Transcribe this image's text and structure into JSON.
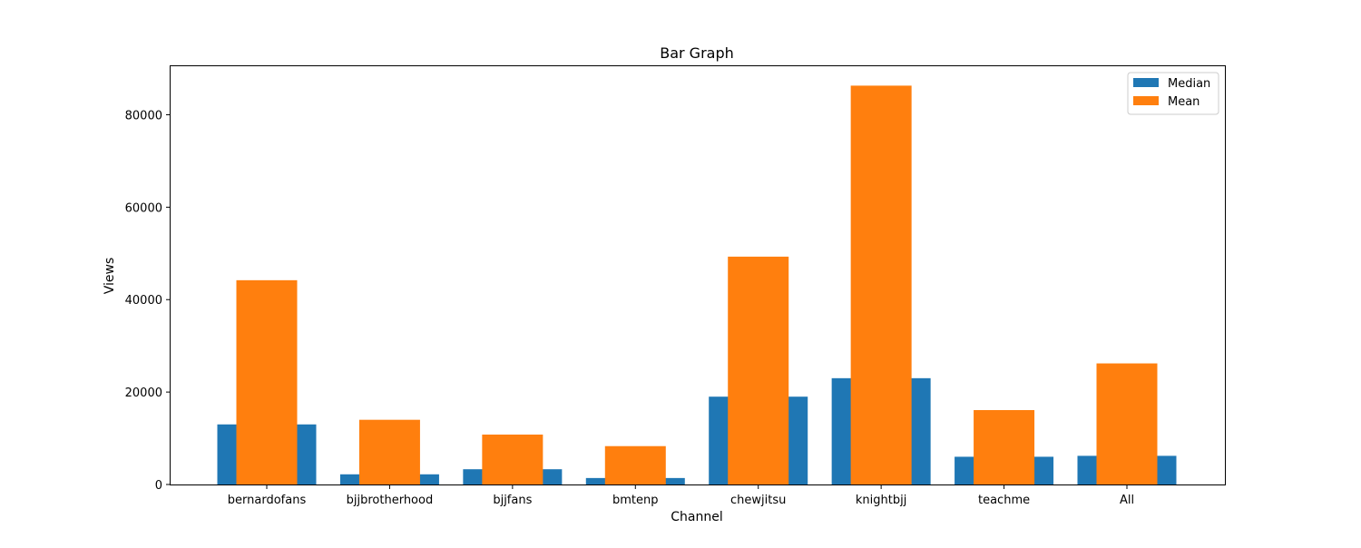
{
  "chart_data": {
    "type": "bar",
    "title": "Bar Graph",
    "xlabel": "Channel",
    "ylabel": "Views",
    "categories": [
      "bernardofans",
      "bjjbrotherhood",
      "bjjfans",
      "bmtenp",
      "chewjitsu",
      "knightbjj",
      "teachme",
      "All"
    ],
    "series": [
      {
        "name": "Median",
        "color": "#1f77b4",
        "values": [
          13000,
          2200,
          3300,
          1400,
          19000,
          23000,
          6000,
          6200
        ]
      },
      {
        "name": "Mean",
        "color": "#ff7f0e",
        "values": [
          44200,
          14000,
          10800,
          8300,
          49300,
          86300,
          16100,
          26200
        ]
      }
    ],
    "ylim": [
      0,
      90500
    ],
    "yticks": [
      0,
      20000,
      40000,
      60000,
      80000
    ],
    "grid": false,
    "legend_position": "top-right"
  }
}
